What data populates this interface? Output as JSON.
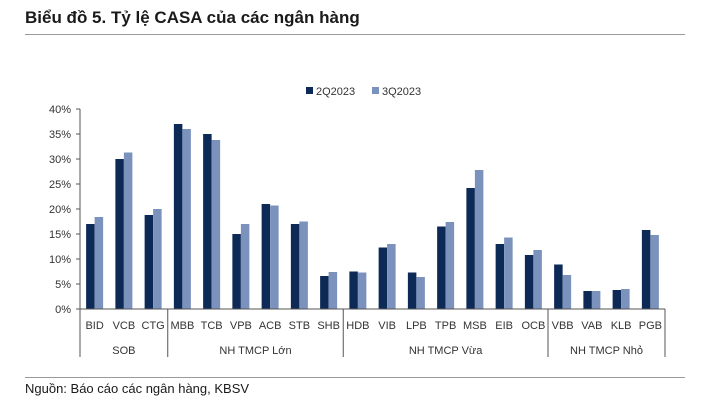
{
  "page": {
    "title": "Biểu đồ 5. Tỷ lệ CASA của các ngân hàng",
    "source": "Nguồn: Báo cáo các ngân hàng, KBSV"
  },
  "colors": {
    "series_2Q2023": "#0d2a57",
    "series_3Q2023": "#7b93bc"
  },
  "chart_data": {
    "type": "bar",
    "categories": [
      "BID",
      "VCB",
      "CTG",
      "MBB",
      "TCB",
      "VPB",
      "ACB",
      "STB",
      "SHB",
      "HDB",
      "VIB",
      "LPB",
      "TPB",
      "MSB",
      "EIB",
      "OCB",
      "VBB",
      "VAB",
      "KLB",
      "PGB"
    ],
    "groups": [
      {
        "label": "SOB",
        "start": 0,
        "count": 3
      },
      {
        "label": "NH TMCP Lớn",
        "start": 3,
        "count": 6
      },
      {
        "label": "NH TMCP Vừa",
        "start": 9,
        "count": 7
      },
      {
        "label": "NH TMCP Nhỏ",
        "start": 16,
        "count": 4
      }
    ],
    "series": [
      {
        "name": "2Q2023",
        "values": [
          17.0,
          30.0,
          18.8,
          37.0,
          35.0,
          15.0,
          21.0,
          17.0,
          6.6,
          7.5,
          12.3,
          7.3,
          16.5,
          24.2,
          13.0,
          10.8,
          8.9,
          3.6,
          3.8,
          15.8
        ]
      },
      {
        "name": "3Q2023",
        "values": [
          18.4,
          31.3,
          20.0,
          36.0,
          33.8,
          17.0,
          20.7,
          17.5,
          7.4,
          7.3,
          13.0,
          6.4,
          17.4,
          27.8,
          14.3,
          11.8,
          6.8,
          3.6,
          4.0,
          14.8
        ]
      }
    ],
    "yticks": [
      "0%",
      "5%",
      "10%",
      "15%",
      "20%",
      "25%",
      "30%",
      "35%",
      "40%"
    ],
    "ylim": [
      0,
      40
    ],
    "legend": "top-center",
    "grid": false
  }
}
